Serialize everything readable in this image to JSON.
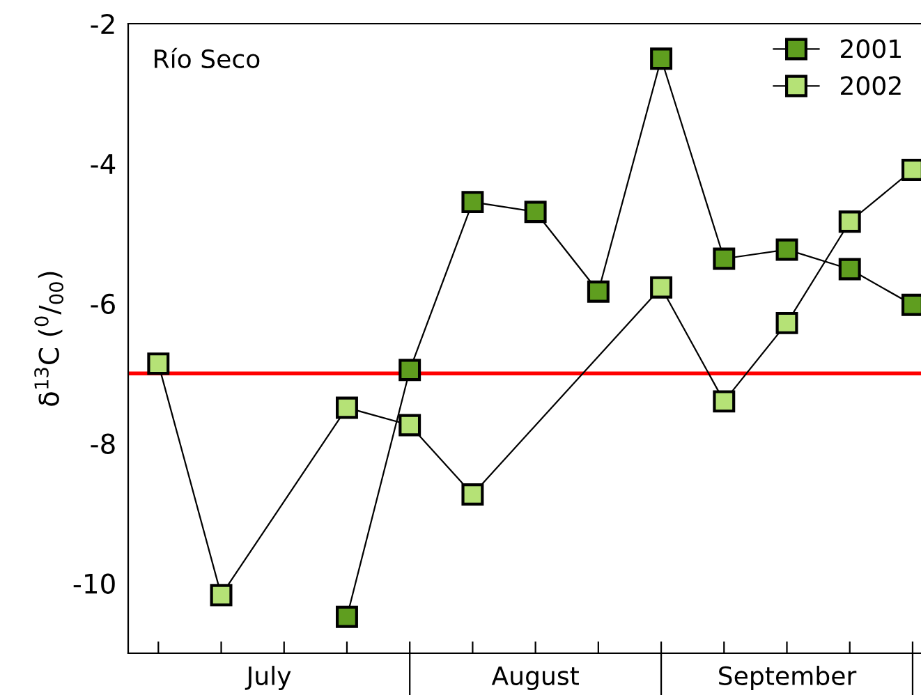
{
  "chart_data": {
    "type": "line",
    "ylabel": "δ$^{13}$C ($^{0}$/$_{00}$)",
    "annotations": [
      "Río Seco",
      "July",
      "August",
      "September"
    ],
    "categories": [
      null,
      null,
      null,
      null,
      null,
      null,
      null,
      null,
      null,
      null,
      null,
      null,
      null
    ],
    "ylim": [
      -11,
      -2
    ],
    "yticks": [
      -2,
      -4,
      -6,
      -8,
      -10
    ],
    "series": [
      {
        "name": "2001",
        "color": "#5f9e1f",
        "values": [
          null,
          null,
          null,
          -10.48,
          -6.95,
          -4.55,
          -4.69,
          -5.83,
          -2.5,
          -5.36,
          -5.23,
          -5.51,
          -6.02
        ]
      },
      {
        "name": "2002",
        "color": "#b5e276",
        "values": [
          -6.86,
          -10.17,
          null,
          -7.49,
          -7.74,
          -8.73,
          null,
          null,
          -5.77,
          -7.4,
          -6.28,
          -4.83,
          -4.09
        ]
      }
    ],
    "ref_lines": [
      {
        "axis": "y",
        "value": -7,
        "color": "#ff0000"
      }
    ],
    "marker": "square",
    "line_style": "solid",
    "legend": "top right"
  }
}
